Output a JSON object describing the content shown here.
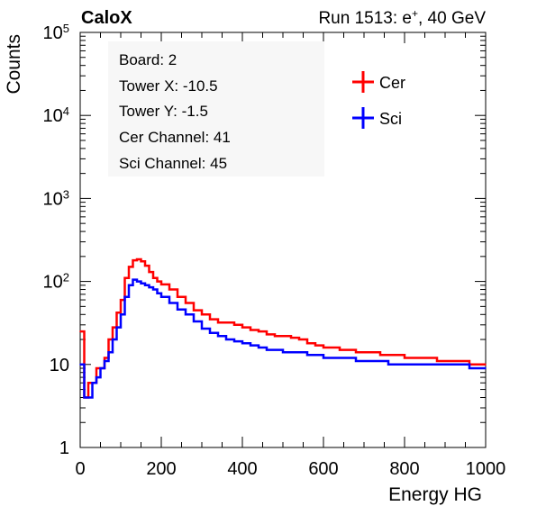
{
  "header": {
    "brand": "CaloX",
    "run_prefix": "Run 1513: e",
    "run_sup": "+",
    "run_suffix": ", 40 GeV"
  },
  "info_box": {
    "lines": [
      "Board: 2",
      "Tower X: -10.5",
      "Tower Y: -1.5",
      "Cer Channel: 41",
      "Sci Channel: 45"
    ]
  },
  "colors": {
    "cer": "#ff0000",
    "sci": "#0000ff",
    "axis": "#000000"
  },
  "chart_data": {
    "type": "line",
    "xlabel": "Energy HG",
    "ylabel": "Counts",
    "xlim": [
      0,
      1000
    ],
    "ylim": [
      1,
      100000
    ],
    "yscale": "log",
    "grid": false,
    "legend_position": "top-right",
    "x_ticks": [
      "0",
      "200",
      "400",
      "600",
      "800",
      "1000"
    ],
    "y_ticks": [
      {
        "base": "1",
        "exp": ""
      },
      {
        "base": "10",
        "exp": ""
      },
      {
        "base": "10",
        "exp": "2"
      },
      {
        "base": "10",
        "exp": "3"
      },
      {
        "base": "10",
        "exp": "4"
      },
      {
        "base": "10",
        "exp": "5"
      }
    ],
    "x": [
      0,
      10,
      20,
      30,
      40,
      50,
      60,
      70,
      80,
      90,
      100,
      110,
      120,
      130,
      140,
      150,
      160,
      170,
      180,
      190,
      200,
      220,
      240,
      260,
      280,
      300,
      320,
      340,
      360,
      380,
      400,
      420,
      440,
      460,
      480,
      500,
      520,
      540,
      560,
      580,
      600,
      620,
      640,
      660,
      680,
      700,
      720,
      740,
      760,
      780,
      800,
      820,
      840,
      860,
      880,
      900,
      920,
      940,
      960,
      980,
      1000
    ],
    "series": [
      {
        "name": "Cer",
        "color": "#ff0000",
        "values": [
          25,
          4,
          6,
          6,
          9,
          9,
          12,
          20,
          28,
          42,
          60,
          110,
          150,
          180,
          185,
          175,
          155,
          130,
          110,
          100,
          92,
          80,
          65,
          55,
          45,
          40,
          35,
          32,
          32,
          30,
          28,
          26,
          25,
          23,
          22,
          22,
          21,
          20,
          18,
          17,
          16,
          16,
          15,
          15,
          14,
          14,
          14,
          13,
          13,
          13,
          12,
          12,
          12,
          12,
          11,
          11,
          11,
          11,
          10,
          10,
          10
        ]
      },
      {
        "name": "Sci",
        "color": "#0000ff",
        "values": [
          10,
          4,
          4,
          6,
          7,
          9,
          11,
          14,
          20,
          28,
          40,
          65,
          90,
          105,
          100,
          95,
          90,
          85,
          80,
          72,
          65,
          55,
          46,
          40,
          33,
          27,
          24,
          22,
          20,
          19,
          18,
          17,
          16,
          15,
          15,
          14,
          14,
          14,
          13,
          13,
          12,
          12,
          12,
          12,
          11,
          11,
          11,
          11,
          10,
          10,
          10,
          10,
          10,
          10,
          10,
          10,
          10,
          10,
          9,
          9,
          9
        ]
      }
    ]
  }
}
